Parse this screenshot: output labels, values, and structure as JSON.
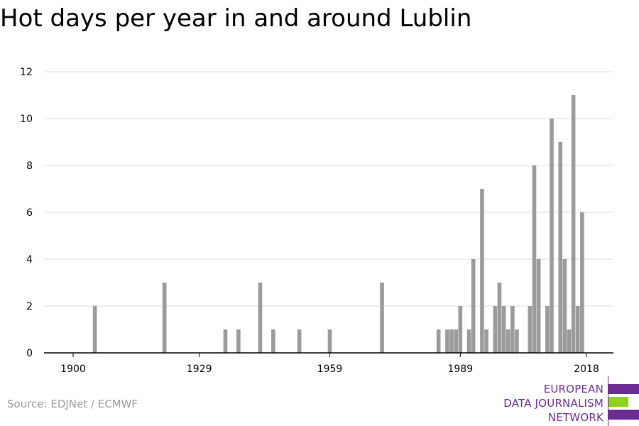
{
  "chart_data": {
    "type": "bar",
    "title": "Hot days per year in and around Lublin",
    "xlabel": "",
    "ylabel": "",
    "xlim": [
      1900,
      2018
    ],
    "ylim": [
      0,
      12
    ],
    "x_ticks": [
      1900,
      1929,
      1959,
      1989,
      2018
    ],
    "y_ticks": [
      0,
      2,
      4,
      6,
      8,
      10,
      12
    ],
    "grid": true,
    "bar_color": "#9b9b9b",
    "points": [
      {
        "year": 1905,
        "value": 2
      },
      {
        "year": 1921,
        "value": 3
      },
      {
        "year": 1935,
        "value": 1
      },
      {
        "year": 1938,
        "value": 1
      },
      {
        "year": 1943,
        "value": 3
      },
      {
        "year": 1946,
        "value": 1
      },
      {
        "year": 1952,
        "value": 1
      },
      {
        "year": 1959,
        "value": 1
      },
      {
        "year": 1971,
        "value": 3
      },
      {
        "year": 1984,
        "value": 1
      },
      {
        "year": 1986,
        "value": 1
      },
      {
        "year": 1987,
        "value": 1
      },
      {
        "year": 1988,
        "value": 1
      },
      {
        "year": 1989,
        "value": 2
      },
      {
        "year": 1991,
        "value": 1
      },
      {
        "year": 1992,
        "value": 4
      },
      {
        "year": 1994,
        "value": 7
      },
      {
        "year": 1995,
        "value": 1
      },
      {
        "year": 1997,
        "value": 2
      },
      {
        "year": 1998,
        "value": 3
      },
      {
        "year": 1999,
        "value": 2
      },
      {
        "year": 2000,
        "value": 1
      },
      {
        "year": 2001,
        "value": 2
      },
      {
        "year": 2002,
        "value": 1
      },
      {
        "year": 2005,
        "value": 2
      },
      {
        "year": 2006,
        "value": 8
      },
      {
        "year": 2007,
        "value": 4
      },
      {
        "year": 2009,
        "value": 2
      },
      {
        "year": 2010,
        "value": 10
      },
      {
        "year": 2012,
        "value": 9
      },
      {
        "year": 2013,
        "value": 4
      },
      {
        "year": 2014,
        "value": 1
      },
      {
        "year": 2015,
        "value": 11
      },
      {
        "year": 2016,
        "value": 2
      },
      {
        "year": 2017,
        "value": 6
      }
    ]
  },
  "source": "Source: EDJNet / ECMWF",
  "logo": {
    "line1": "EUROPEAN",
    "line2": "DATA JOURNALISM",
    "line3": "NETWORK",
    "purple": "#6b2c91",
    "green": "#8fd21e"
  }
}
